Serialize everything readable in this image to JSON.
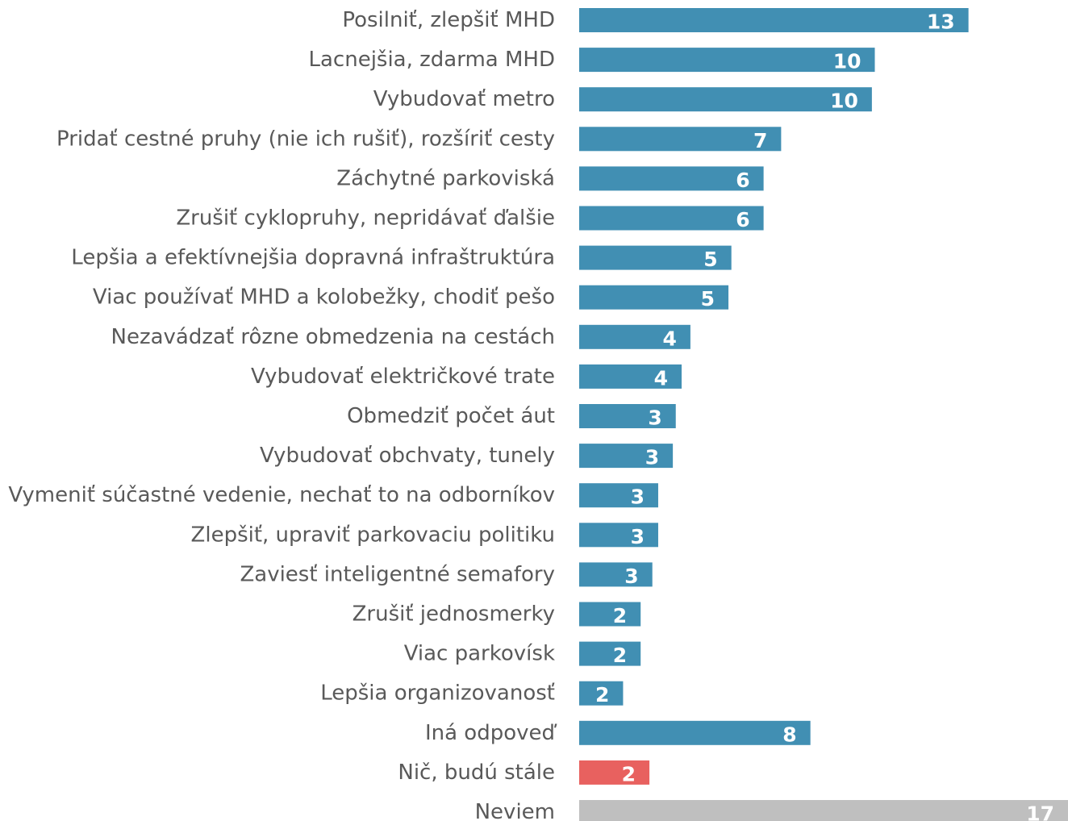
{
  "chart_data": {
    "type": "bar",
    "orientation": "horizontal",
    "categories": [
      "Posilniť, zlepšiť MHD",
      "Lacnejšia, zdarma MHD",
      "Vybudovať metro",
      "Pridať cestné pruhy (nie ich rušiť), rozšíriť cesty",
      "Záchytné parkoviská",
      "Zrušiť cyklopruhy, nepridávať ďalšie",
      "Lepšia a efektívnejšia dopravná infraštruktúra",
      "Viac používať MHD a kolobežky, chodiť pešo",
      "Nezavádzať rôzne obmedzenia na cestách",
      "Vybudovať električkové trate",
      "Obmedziť počet áut",
      "Vybudovať obchvaty, tunely",
      "Vymeniť súčastné vedenie, nechať to na odborníkov",
      "Zlepšiť, upraviť parkovaciu politiku",
      "Zaviesť inteligentné semafory",
      "Zrušiť jednosmerky",
      "Viac parkovísk",
      "Lepšia organizovanosť",
      "Iná odpoveď",
      "Nič, budú stále",
      "Neviem"
    ],
    "values": [
      13.3,
      10.1,
      10.0,
      6.9,
      6.3,
      6.3,
      5.2,
      5.1,
      3.8,
      3.5,
      3.3,
      3.2,
      2.7,
      2.7,
      2.5,
      2.1,
      2.1,
      1.5,
      7.9,
      2.4,
      16.7
    ],
    "value_labels": [
      "13",
      "10",
      "10",
      "7",
      "6",
      "6",
      "5",
      "5",
      "4",
      "4",
      "3",
      "3",
      "3",
      "3",
      "3",
      "2",
      "2",
      "2",
      "8",
      "2",
      "17"
    ],
    "colors": {
      "default": "#418fb3",
      "nothing": "#e8615f",
      "dont_know": "#bfbfbf"
    },
    "bar_color_keys": [
      "default",
      "default",
      "default",
      "default",
      "default",
      "default",
      "default",
      "default",
      "default",
      "default",
      "default",
      "default",
      "default",
      "default",
      "default",
      "default",
      "default",
      "default",
      "default",
      "nothing",
      "dont_know"
    ],
    "xlim": [
      0,
      16.7
    ],
    "grid": false,
    "legend": "none",
    "title": "",
    "xlabel": "",
    "ylabel": ""
  }
}
